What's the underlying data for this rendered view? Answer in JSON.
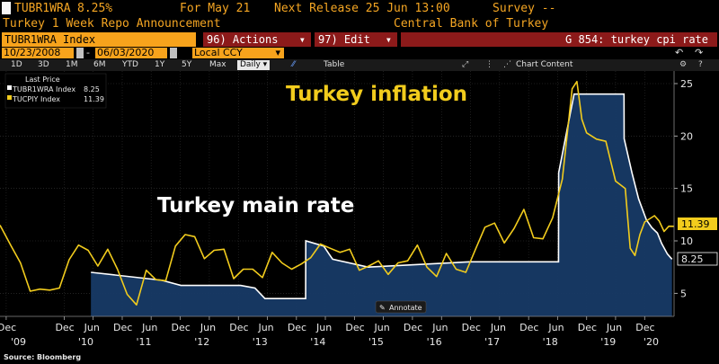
{
  "header": {
    "ticker": "TUBR1WRA",
    "value": "8.25%",
    "for": "For May 21",
    "next_release": "Next Release 25 Jun 13:00",
    "survey": "Survey --",
    "subtitle": "Turkey 1 Week Repo Announcement",
    "source_name": "Central Bank of Turkey"
  },
  "toolbar": {
    "index_field": "TUBR1WRA Index",
    "actions": "96) Actions",
    "edit": "97) Edit",
    "caret": "▾",
    "chart_title": "G 854: turkey cpi rate"
  },
  "dates": {
    "start": "10/23/2008",
    "end": "06/03/2020",
    "currency": "Local CCY"
  },
  "tabs": {
    "periods": [
      "1D",
      "3D",
      "1M",
      "6M",
      "YTD",
      "1Y",
      "5Y",
      "Max"
    ],
    "frequency": "Daily",
    "table": "Table",
    "chart_content": "Chart Content"
  },
  "legend": {
    "title": "Last Price",
    "items": [
      {
        "label": "TUBR1WRA Index",
        "value": "8.25",
        "color": "#ffffff"
      },
      {
        "label": "TUCPIY Index",
        "value": "11.39",
        "color": "#f2cc1d"
      }
    ]
  },
  "annotations": {
    "inflation": "Turkey inflation",
    "main_rate": "Turkey main rate",
    "annotate_button": "Annotate",
    "source": "Source: Bloomberg"
  },
  "last_labels": {
    "cpi": "11.39",
    "rate": "8.25"
  },
  "x_axis": {
    "months": [
      "Dec",
      "Dec",
      "Jun",
      "Dec",
      "Jun",
      "Dec",
      "Jun",
      "Dec",
      "Jun",
      "Dec",
      "Jun",
      "Dec",
      "Jun",
      "Dec",
      "Jun",
      "Dec",
      "Jun",
      "Dec",
      "Jun",
      "Dec",
      "Jun",
      "Dec"
    ],
    "years": [
      "'09",
      "'10",
      "'11",
      "'12",
      "'13",
      "'14",
      "'15",
      "'16",
      "'17",
      "'18",
      "'19",
      "'20"
    ]
  },
  "chart_data": {
    "type": "line",
    "title": "",
    "xlabel": "",
    "ylabel": "",
    "ylim": [
      2.8,
      26.2
    ],
    "y_ticks": [
      5,
      10,
      15,
      20,
      25
    ],
    "x_range": [
      "2008-10-23",
      "2020-06-03"
    ],
    "series": [
      {
        "name": "TUBR1WRA Index",
        "color": "#ffffff",
        "fill": "area",
        "points": [
          [
            "2010-05-18",
            7.0
          ],
          [
            "2011-08-05",
            6.25
          ],
          [
            "2011-12-05",
            5.75
          ],
          [
            "2012-12-15",
            5.75
          ],
          [
            "2013-03-15",
            5.5
          ],
          [
            "2013-05-17",
            4.5
          ],
          [
            "2014-01-28",
            4.5
          ],
          [
            "2014-01-29",
            10.0
          ],
          [
            "2014-05-22",
            9.5
          ],
          [
            "2014-06-24",
            8.75
          ],
          [
            "2014-07-17",
            8.25
          ],
          [
            "2015-02-24",
            7.5
          ],
          [
            "2016-11-24",
            8.0
          ],
          [
            "2017-10-01",
            8.0
          ],
          [
            "2018-06-07",
            8.0
          ],
          [
            "2018-06-08",
            16.5
          ],
          [
            "2018-09-13",
            24.0
          ],
          [
            "2019-07-24",
            24.0
          ],
          [
            "2019-07-25",
            19.75
          ],
          [
            "2019-09-12",
            16.5
          ],
          [
            "2019-10-24",
            14.0
          ],
          [
            "2019-12-12",
            12.0
          ],
          [
            "2020-01-16",
            11.25
          ],
          [
            "2020-02-19",
            10.75
          ],
          [
            "2020-03-17",
            9.75
          ],
          [
            "2020-04-22",
            8.75
          ],
          [
            "2020-05-21",
            8.25
          ]
        ]
      },
      {
        "name": "TUCPIY Index",
        "color": "#f2cc1d",
        "points": [
          [
            "2008-10-23",
            11.5
          ],
          [
            "2009-01-01",
            9.5
          ],
          [
            "2009-03-01",
            7.9
          ],
          [
            "2009-05-01",
            5.2
          ],
          [
            "2009-07-01",
            5.4
          ],
          [
            "2009-09-01",
            5.3
          ],
          [
            "2009-11-01",
            5.5
          ],
          [
            "2010-01-01",
            8.2
          ],
          [
            "2010-03-01",
            9.6
          ],
          [
            "2010-05-01",
            9.1
          ],
          [
            "2010-07-01",
            7.6
          ],
          [
            "2010-09-01",
            9.2
          ],
          [
            "2010-11-01",
            7.3
          ],
          [
            "2011-01-01",
            4.9
          ],
          [
            "2011-03-01",
            3.9
          ],
          [
            "2011-05-01",
            7.2
          ],
          [
            "2011-07-01",
            6.3
          ],
          [
            "2011-09-01",
            6.2
          ],
          [
            "2011-11-01",
            9.5
          ],
          [
            "2012-01-01",
            10.6
          ],
          [
            "2012-03-01",
            10.4
          ],
          [
            "2012-05-01",
            8.3
          ],
          [
            "2012-07-01",
            9.1
          ],
          [
            "2012-09-01",
            9.2
          ],
          [
            "2012-11-01",
            6.4
          ],
          [
            "2013-01-01",
            7.3
          ],
          [
            "2013-03-01",
            7.3
          ],
          [
            "2013-05-01",
            6.5
          ],
          [
            "2013-07-01",
            8.9
          ],
          [
            "2013-09-01",
            7.9
          ],
          [
            "2013-11-01",
            7.3
          ],
          [
            "2014-01-01",
            7.8
          ],
          [
            "2014-03-01",
            8.4
          ],
          [
            "2014-05-01",
            9.7
          ],
          [
            "2014-07-01",
            9.3
          ],
          [
            "2014-09-01",
            8.9
          ],
          [
            "2014-11-01",
            9.2
          ],
          [
            "2015-01-01",
            7.2
          ],
          [
            "2015-03-01",
            7.6
          ],
          [
            "2015-05-01",
            8.1
          ],
          [
            "2015-07-01",
            6.8
          ],
          [
            "2015-09-01",
            7.9
          ],
          [
            "2015-11-01",
            8.1
          ],
          [
            "2016-01-01",
            9.6
          ],
          [
            "2016-03-01",
            7.5
          ],
          [
            "2016-05-01",
            6.6
          ],
          [
            "2016-07-01",
            8.8
          ],
          [
            "2016-09-01",
            7.3
          ],
          [
            "2016-11-01",
            7.0
          ],
          [
            "2017-01-01",
            9.2
          ],
          [
            "2017-03-01",
            11.3
          ],
          [
            "2017-05-01",
            11.7
          ],
          [
            "2017-07-01",
            9.8
          ],
          [
            "2017-09-01",
            11.2
          ],
          [
            "2017-11-01",
            13.0
          ],
          [
            "2018-01-01",
            10.3
          ],
          [
            "2018-03-01",
            10.2
          ],
          [
            "2018-05-01",
            12.2
          ],
          [
            "2018-07-01",
            15.9
          ],
          [
            "2018-09-01",
            24.5
          ],
          [
            "2018-10-01",
            25.2
          ],
          [
            "2018-11-01",
            21.6
          ],
          [
            "2018-12-01",
            20.3
          ],
          [
            "2019-02-01",
            19.7
          ],
          [
            "2019-04-01",
            19.5
          ],
          [
            "2019-06-01",
            15.7
          ],
          [
            "2019-08-01",
            15.0
          ],
          [
            "2019-09-01",
            9.3
          ],
          [
            "2019-10-01",
            8.6
          ],
          [
            "2019-11-01",
            10.6
          ],
          [
            "2019-12-01",
            11.8
          ],
          [
            "2020-02-01",
            12.4
          ],
          [
            "2020-03-01",
            11.9
          ],
          [
            "2020-04-01",
            10.9
          ],
          [
            "2020-05-01",
            11.4
          ],
          [
            "2020-06-03",
            11.39
          ]
        ]
      }
    ],
    "grid": true,
    "legend": "top-left"
  }
}
